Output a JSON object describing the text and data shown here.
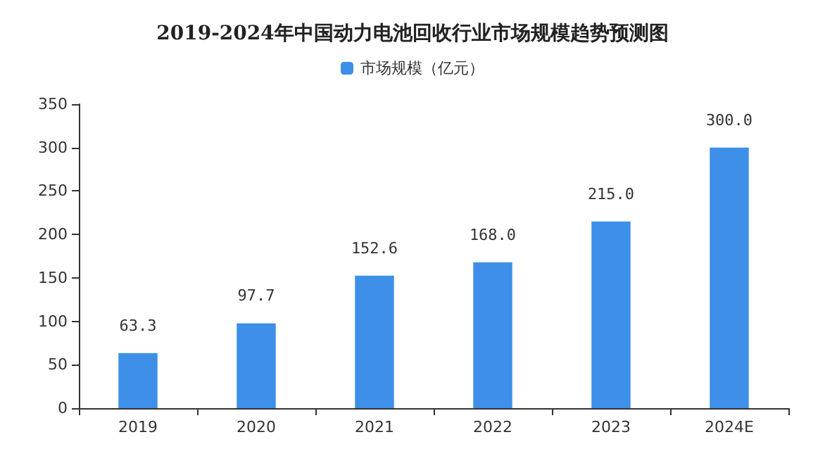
{
  "chart_data": {
    "type": "bar",
    "title": "2019-2024年中国动力电池回收行业市场规模趋势预测图",
    "categories": [
      "2019",
      "2020",
      "2021",
      "2022",
      "2023",
      "2024E"
    ],
    "series": [
      {
        "name": "市场规模（亿元）",
        "color": "#3d8fe8",
        "values": [
          63.3,
          97.7,
          152.6,
          168.0,
          215.0,
          300.0
        ],
        "value_labels": [
          "63.3",
          "97.7",
          "152.6",
          "168.0",
          "215.0",
          "300.0"
        ]
      }
    ],
    "ylim": [
      0,
      350
    ],
    "yticks": [
      0,
      50,
      100,
      150,
      200,
      250,
      300,
      350
    ],
    "grid": false,
    "legend": "top"
  }
}
